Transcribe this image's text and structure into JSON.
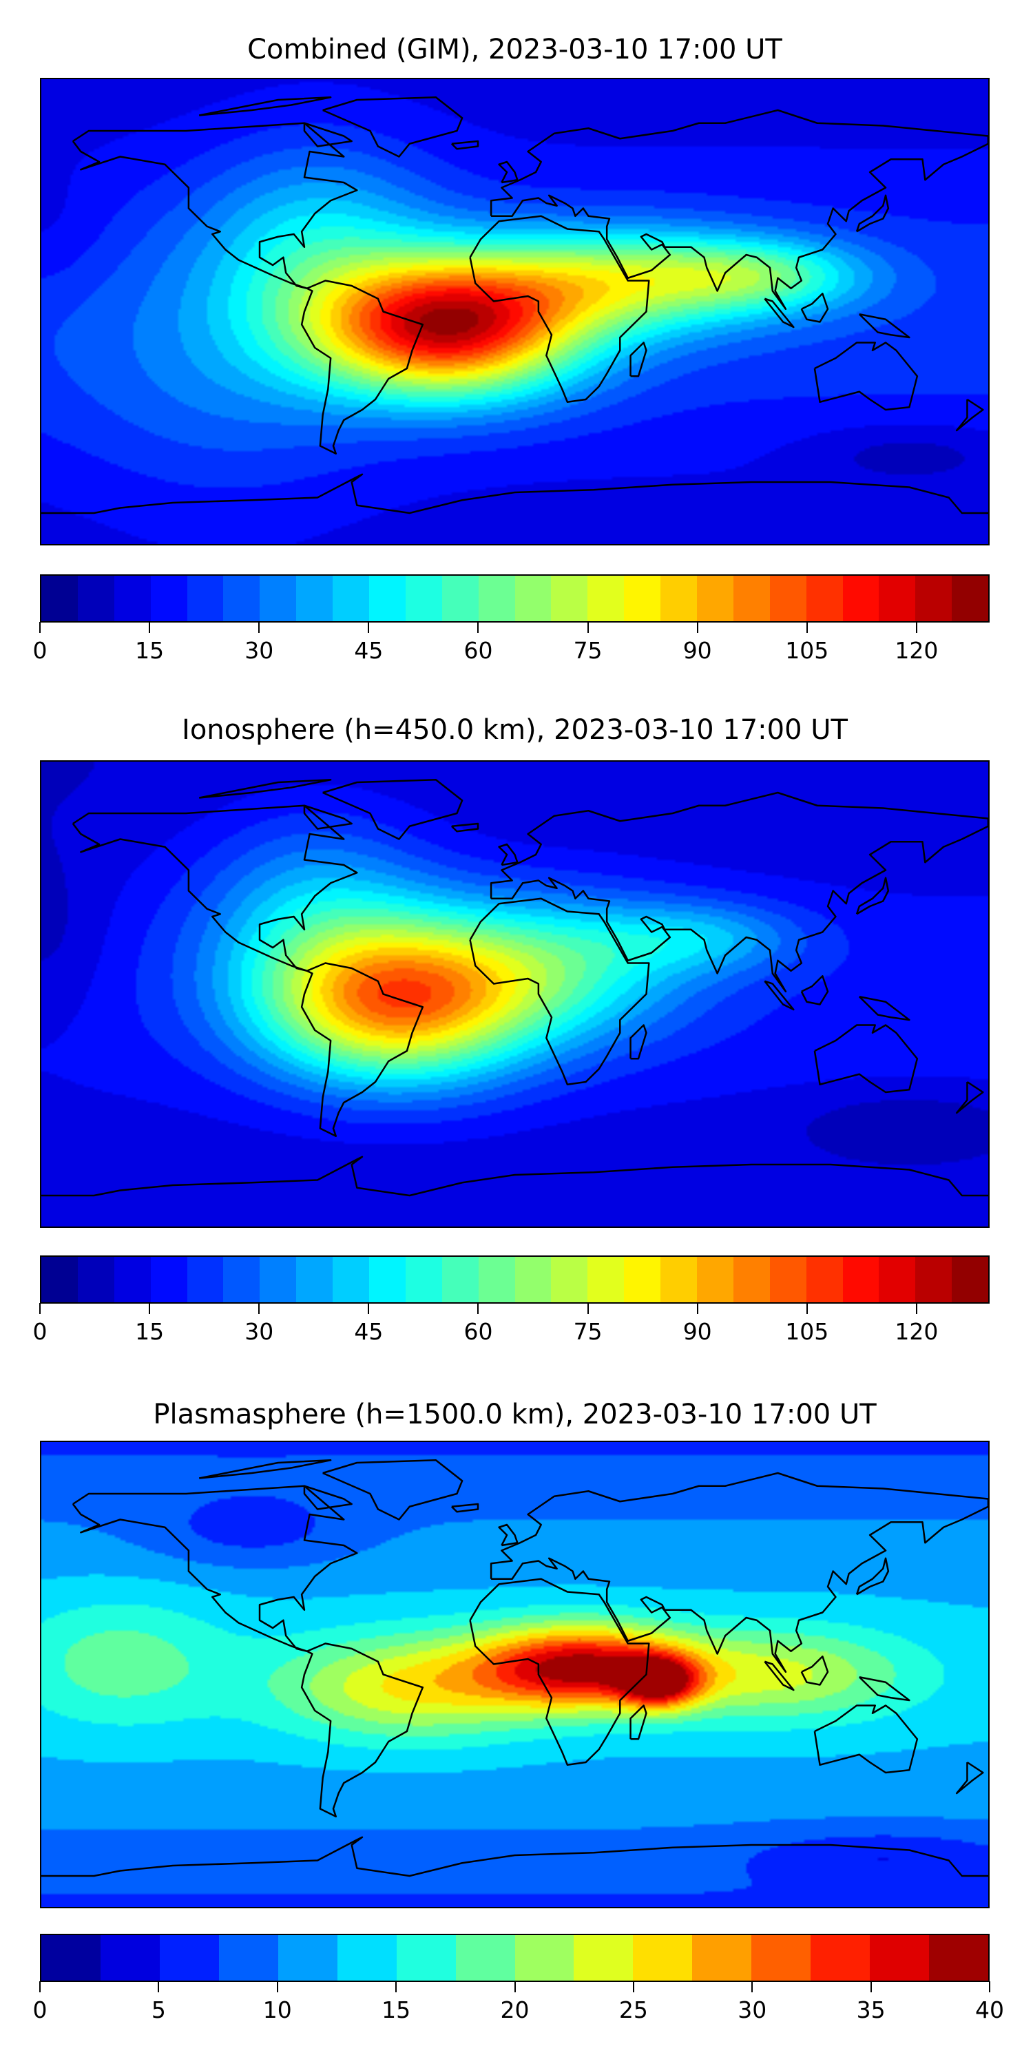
{
  "panels": [
    {
      "title": "Combined (GIM), 2023-03-10 17:00 UT",
      "colorbar": {
        "min": 0,
        "max": 130,
        "step": 5,
        "ticks": [
          "0",
          "15",
          "30",
          "45",
          "60",
          "75",
          "90",
          "105",
          "120"
        ],
        "tick_values": [
          0,
          15,
          30,
          45,
          60,
          75,
          90,
          105,
          120
        ]
      },
      "type": "heatmap"
    },
    {
      "title": "Ionosphere  (h=450.0 km), 2023-03-10 17:00 UT",
      "colorbar": {
        "min": 0,
        "max": 130,
        "step": 5,
        "ticks": [
          "0",
          "15",
          "30",
          "45",
          "60",
          "75",
          "90",
          "105",
          "120"
        ],
        "tick_values": [
          0,
          15,
          30,
          45,
          60,
          75,
          90,
          105,
          120
        ]
      },
      "type": "heatmap"
    },
    {
      "title": "Plasmasphere (h=1500.0 km), 2023-03-10 17:00 UT",
      "colorbar": {
        "min": 0,
        "max": 40,
        "step": 2.5,
        "ticks": [
          "0",
          "5",
          "10",
          "15",
          "20",
          "25",
          "30",
          "35",
          "40"
        ],
        "tick_values": [
          0,
          5,
          10,
          15,
          20,
          25,
          30,
          35,
          40
        ]
      },
      "type": "heatmap"
    }
  ],
  "colors": {
    "coastline": "#000000",
    "frame": "#000000"
  }
}
